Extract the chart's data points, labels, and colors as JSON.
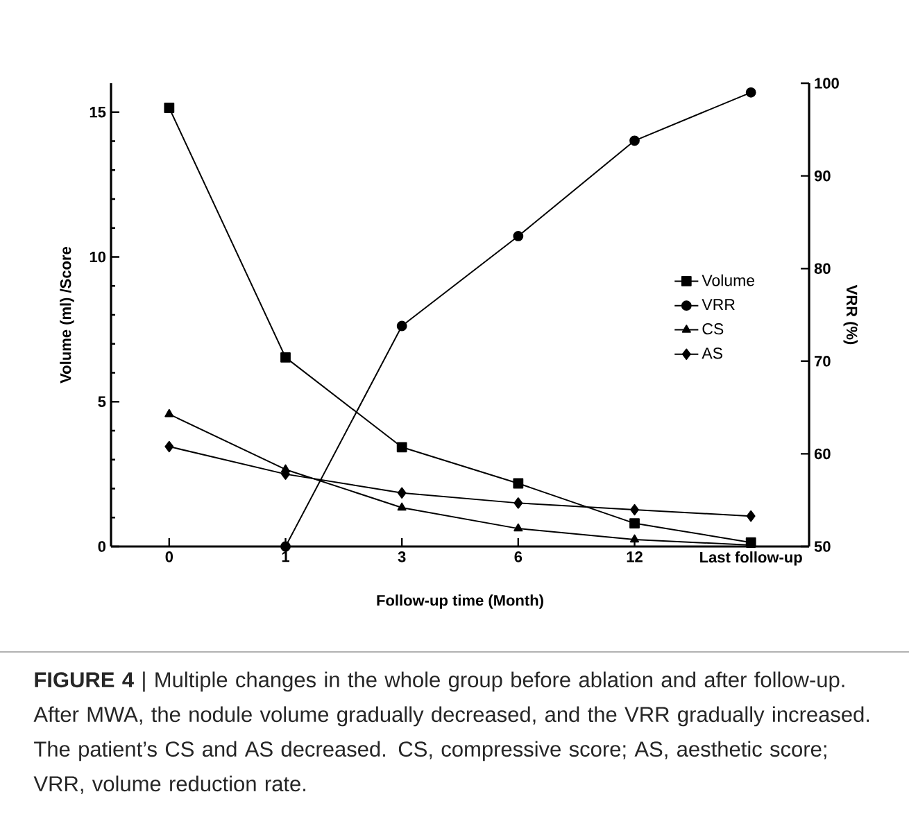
{
  "chart_data": {
    "type": "line",
    "xlabel": "Follow-up time (Month)",
    "ylabel": "Volume (ml) /Score",
    "y2label": "VRR (%)",
    "categories": [
      "0",
      "1",
      "3",
      "6",
      "12",
      "Last follow-up"
    ],
    "series": [
      {
        "name": "Volume",
        "color": "#000000",
        "marker": "square",
        "values": [
          15.15,
          6.53,
          3.43,
          2.18,
          0.8,
          0.14
        ]
      },
      {
        "name": "VRR",
        "color": "#000000",
        "marker": "circle",
        "axis": "y2",
        "values": [
          null,
          50,
          73.8,
          83.5,
          93.8,
          99.0
        ]
      },
      {
        "name": "CS",
        "color": "#000000",
        "marker": "triangle",
        "values": [
          4.57,
          2.66,
          1.34,
          0.62,
          0.24,
          0.05
        ]
      },
      {
        "name": "AS",
        "color": "#000000",
        "marker": "diamond",
        "values": [
          3.45,
          2.5,
          1.85,
          1.5,
          1.27,
          1.05
        ]
      }
    ],
    "ylim": [
      0,
      16
    ],
    "yticks": [
      0,
      5,
      10,
      15
    ],
    "y2lim": [
      50,
      100
    ],
    "y2ticks": [
      50,
      60,
      70,
      80,
      90,
      100
    ],
    "grid": false,
    "legend": "right",
    "line_style": "solid",
    "annotations": [
      "**FIGURE 4** | Multiple changes in the whole group before ablation and after follow-up. After MWA, the nodule volume gradually decreased, and the VRR gradually increased. The patient’s CS and AS decreased. CS, compressive score; AS, aesthetic score; VRR, volume reduction rate."
    ]
  }
}
